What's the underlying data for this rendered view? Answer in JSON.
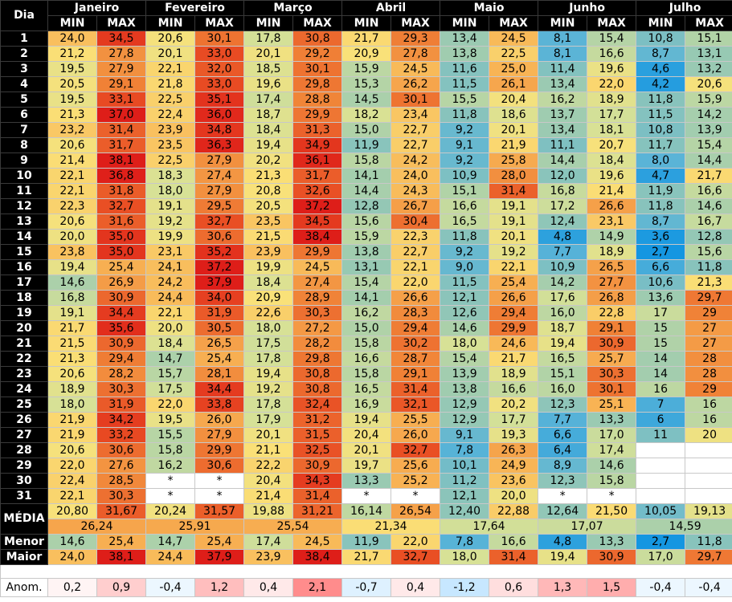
{
  "labels": {
    "dia": "Dia",
    "min": "MIN",
    "max": "MAX",
    "media": "MÉDIA",
    "menor": "Menor",
    "maior": "Maior",
    "anom": "Anom."
  },
  "months": [
    "Janeiro",
    "Fevereiro",
    "Março",
    "Abril",
    "Maio",
    "Junho",
    "Julho"
  ],
  "rows": [
    {
      "day": "1",
      "vals": [
        "24,0",
        "34,5",
        "20,6",
        "30,1",
        "17,8",
        "30,8",
        "21,7",
        "29,3",
        "13,4",
        "24,5",
        "8,1",
        "15,4",
        "10,8",
        "15,1"
      ]
    },
    {
      "day": "2",
      "vals": [
        "21,2",
        "27,8",
        "20,1",
        "33,0",
        "20,1",
        "29,2",
        "20,9",
        "27,8",
        "13,8",
        "22,5",
        "8,1",
        "16,6",
        "8,7",
        "13,1"
      ]
    },
    {
      "day": "3",
      "vals": [
        "19,5",
        "27,9",
        "22,1",
        "32,0",
        "18,5",
        "30,1",
        "15,9",
        "24,5",
        "11,6",
        "25,0",
        "11,4",
        "19,6",
        "4,6",
        "13,2"
      ]
    },
    {
      "day": "4",
      "vals": [
        "20,5",
        "29,1",
        "21,8",
        "33,0",
        "19,6",
        "29,8",
        "15,3",
        "26,2",
        "11,5",
        "26,1",
        "13,4",
        "22,0",
        "4,2",
        "20,6"
      ]
    },
    {
      "day": "5",
      "vals": [
        "19,5",
        "33,1",
        "22,5",
        "35,1",
        "17,4",
        "28,8",
        "14,5",
        "30,1",
        "15,5",
        "20,4",
        "16,2",
        "18,9",
        "11,8",
        "15,9"
      ]
    },
    {
      "day": "6",
      "vals": [
        "21,3",
        "37,0",
        "22,4",
        "36,0",
        "18,7",
        "29,9",
        "18,2",
        "23,4",
        "11,8",
        "18,6",
        "13,7",
        "17,7",
        "11,5",
        "14,2"
      ]
    },
    {
      "day": "7",
      "vals": [
        "23,2",
        "31,4",
        "23,9",
        "34,8",
        "18,4",
        "31,3",
        "15,0",
        "22,7",
        "9,2",
        "20,1",
        "13,4",
        "18,1",
        "10,8",
        "13,9"
      ]
    },
    {
      "day": "8",
      "vals": [
        "20,6",
        "31,7",
        "23,5",
        "36,3",
        "19,4",
        "34,9",
        "11,9",
        "22,7",
        "9,1",
        "21,9",
        "11,1",
        "20,7",
        "11,7",
        "15,4"
      ]
    },
    {
      "day": "9",
      "vals": [
        "21,4",
        "38,1",
        "22,5",
        "27,9",
        "20,2",
        "36,1",
        "15,8",
        "24,2",
        "9,2",
        "25,8",
        "14,4",
        "18,4",
        "8,0",
        "14,4"
      ]
    },
    {
      "day": "10",
      "vals": [
        "22,1",
        "36,8",
        "18,3",
        "27,4",
        "21,3",
        "31,7",
        "14,1",
        "24,0",
        "10,9",
        "28,0",
        "12,0",
        "19,6",
        "4,7",
        "21,7"
      ]
    },
    {
      "day": "11",
      "vals": [
        "22,1",
        "31,8",
        "18,0",
        "27,9",
        "20,8",
        "32,6",
        "14,4",
        "24,3",
        "15,1",
        "31,4",
        "16,8",
        "21,4",
        "11,9",
        "16,6"
      ]
    },
    {
      "day": "12",
      "vals": [
        "22,3",
        "32,7",
        "19,1",
        "29,5",
        "20,5",
        "37,2",
        "12,8",
        "26,7",
        "16,6",
        "19,1",
        "17,2",
        "26,6",
        "11,8",
        "14,6"
      ]
    },
    {
      "day": "13",
      "vals": [
        "20,6",
        "31,6",
        "19,2",
        "32,7",
        "23,5",
        "34,5",
        "15,6",
        "30,4",
        "16,5",
        "19,1",
        "12,4",
        "23,1",
        "8,7",
        "16,7"
      ]
    },
    {
      "day": "14",
      "vals": [
        "20,0",
        "35,0",
        "19,9",
        "30,6",
        "21,5",
        "38,4",
        "15,9",
        "22,3",
        "11,8",
        "20,1",
        "4,8",
        "14,9",
        "3,6",
        "12,8"
      ]
    },
    {
      "day": "15",
      "vals": [
        "23,8",
        "35,0",
        "23,1",
        "35,2",
        "23,9",
        "29,9",
        "13,8",
        "22,7",
        "9,2",
        "19,2",
        "7,7",
        "18,9",
        "2,7",
        "15,6"
      ]
    },
    {
      "day": "16",
      "vals": [
        "19,4",
        "25,4",
        "24,1",
        "37,2",
        "19,9",
        "24,5",
        "13,1",
        "22,1",
        "9,0",
        "22,1",
        "10,9",
        "26,5",
        "6,6",
        "11,8"
      ]
    },
    {
      "day": "17",
      "vals": [
        "14,6",
        "26,9",
        "24,2",
        "37,9",
        "18,4",
        "27,4",
        "15,4",
        "22,0",
        "11,5",
        "25,4",
        "14,2",
        "27,7",
        "10,6",
        "21,3"
      ]
    },
    {
      "day": "18",
      "vals": [
        "16,8",
        "30,9",
        "24,4",
        "34,0",
        "20,9",
        "28,9",
        "14,1",
        "26,6",
        "12,1",
        "26,6",
        "17,6",
        "26,8",
        "13,6",
        "29,7"
      ]
    },
    {
      "day": "19",
      "vals": [
        "19,1",
        "34,4",
        "22,1",
        "31,9",
        "22,6",
        "30,3",
        "16,2",
        "28,3",
        "12,6",
        "29,4",
        "16,0",
        "22,8",
        "17",
        "29"
      ]
    },
    {
      "day": "20",
      "vals": [
        "21,7",
        "35,6",
        "20,0",
        "30,5",
        "18,0",
        "27,2",
        "15,0",
        "29,4",
        "14,6",
        "29,9",
        "18,7",
        "29,1",
        "15",
        "27"
      ]
    },
    {
      "day": "21",
      "vals": [
        "21,5",
        "30,9",
        "18,4",
        "26,5",
        "17,5",
        "28,2",
        "15,8",
        "30,2",
        "18,0",
        "24,6",
        "19,4",
        "30,9",
        "15",
        "27"
      ]
    },
    {
      "day": "22",
      "vals": [
        "21,3",
        "29,4",
        "14,7",
        "25,4",
        "17,8",
        "29,8",
        "16,6",
        "28,7",
        "15,4",
        "21,7",
        "16,5",
        "25,7",
        "14",
        "28"
      ]
    },
    {
      "day": "23",
      "vals": [
        "20,6",
        "28,2",
        "15,7",
        "28,1",
        "19,4",
        "30,8",
        "15,8",
        "29,1",
        "13,9",
        "18,9",
        "15,1",
        "30,3",
        "14",
        "28"
      ]
    },
    {
      "day": "24",
      "vals": [
        "18,9",
        "30,3",
        "17,5",
        "34,4",
        "19,2",
        "30,8",
        "16,5",
        "31,4",
        "13,8",
        "16,6",
        "16,0",
        "30,1",
        "16",
        "29"
      ]
    },
    {
      "day": "25",
      "vals": [
        "18,0",
        "31,9",
        "22,0",
        "33,8",
        "17,8",
        "32,4",
        "16,9",
        "32,1",
        "12,9",
        "20,2",
        "12,3",
        "25,1",
        "7",
        "16"
      ]
    },
    {
      "day": "26",
      "vals": [
        "21,9",
        "34,2",
        "19,5",
        "26,0",
        "17,9",
        "31,2",
        "19,4",
        "25,5",
        "12,9",
        "17,7",
        "7,7",
        "13,3",
        "6",
        "16"
      ]
    },
    {
      "day": "27",
      "vals": [
        "21,9",
        "33,2",
        "15,5",
        "27,9",
        "20,1",
        "31,5",
        "20,4",
        "26,0",
        "9,1",
        "19,3",
        "6,6",
        "17,0",
        "11",
        "20"
      ]
    },
    {
      "day": "28",
      "vals": [
        "20,6",
        "30,6",
        "15,8",
        "29,9",
        "21,1",
        "32,5",
        "20,1",
        "32,7",
        "7,8",
        "26,3",
        "6,4",
        "17,4",
        "",
        ""
      ]
    },
    {
      "day": "29",
      "vals": [
        "22,0",
        "27,6",
        "16,2",
        "30,6",
        "22,2",
        "30,9",
        "19,7",
        "25,6",
        "10,1",
        "24,9",
        "8,9",
        "14,6",
        "",
        ""
      ]
    },
    {
      "day": "30",
      "vals": [
        "22,4",
        "28,5",
        "*",
        "*",
        "20,4",
        "34,3",
        "13,3",
        "25,2",
        "11,2",
        "23,6",
        "12,3",
        "15,8",
        "",
        ""
      ]
    },
    {
      "day": "31",
      "vals": [
        "22,1",
        "30,3",
        "*",
        "*",
        "21,4",
        "31,4",
        "*",
        "*",
        "12,1",
        "20,0",
        "*",
        "*",
        "",
        ""
      ]
    }
  ],
  "media": [
    "20,80",
    "31,67",
    "20,24",
    "31,57",
    "19,88",
    "31,21",
    "16,14",
    "26,54",
    "12,40",
    "22,88",
    "12,64",
    "21,50",
    "10,05",
    "19,13"
  ],
  "media_total": [
    "26,24",
    "25,91",
    "25,54",
    "21,34",
    "17,64",
    "17,07",
    "14,59"
  ],
  "menor": [
    "14,6",
    "25,4",
    "14,7",
    "25,4",
    "17,4",
    "24,5",
    "11,9",
    "22,0",
    "7,8",
    "16,6",
    "4,8",
    "13,3",
    "2,7",
    "11,8"
  ],
  "maior": [
    "24,0",
    "38,1",
    "24,4",
    "37,9",
    "23,9",
    "38,4",
    "21,7",
    "32,7",
    "18,0",
    "31,4",
    "19,4",
    "30,9",
    "17,0",
    "29,7"
  ],
  "anom": [
    "0,2",
    "0,9",
    "-0,4",
    "1,2",
    "0,4",
    "2,1",
    "-0,7",
    "0,4",
    "-1,2",
    "0,6",
    "1,3",
    "1,5",
    "-0,4",
    "-0,4"
  ]
}
